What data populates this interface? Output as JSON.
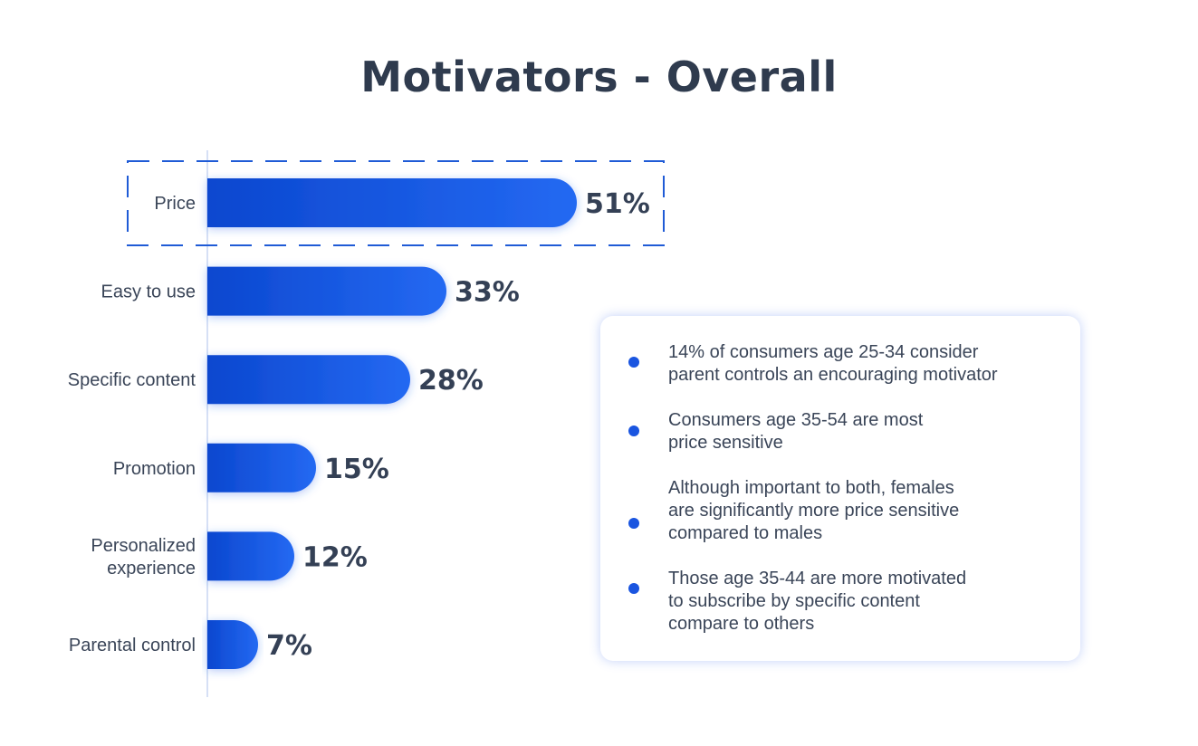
{
  "chart_data": {
    "type": "bar",
    "orientation": "horizontal",
    "title": "Motivators - Overall",
    "categories": [
      "Price",
      "Easy to use",
      "Specific content",
      "Promotion",
      "Personalized experience",
      "Parental control"
    ],
    "values": [
      51,
      33,
      28,
      15,
      12,
      7
    ],
    "value_labels": [
      "51%",
      "33%",
      "28%",
      "15%",
      "12%",
      "7%"
    ],
    "unit": "%",
    "highlighted_category": "Price",
    "xlabel": "",
    "ylabel": "",
    "xlim": [
      0,
      100
    ],
    "grid": false,
    "legend": "none",
    "colors": {
      "bar_start": "#0b47cf",
      "bar_end": "#2469f2",
      "highlight_border": "#1f5bd6",
      "axis": "#d6e0f5"
    }
  },
  "insights": [
    {
      "line1": "14% of consumers age 25-34 consider",
      "line2": "parent controls an encouraging motivator"
    },
    {
      "line1": "Consumers age 35-54 are most",
      "line2": "price sensitive"
    },
    {
      "line1": "Although important to both, females",
      "line2": "are significantly more price sensitive",
      "line3": "compared to males"
    },
    {
      "line1": "Those age 35-44 are more motivated",
      "line2": "to subscribe by specific content",
      "line3": "compare to others"
    }
  ]
}
